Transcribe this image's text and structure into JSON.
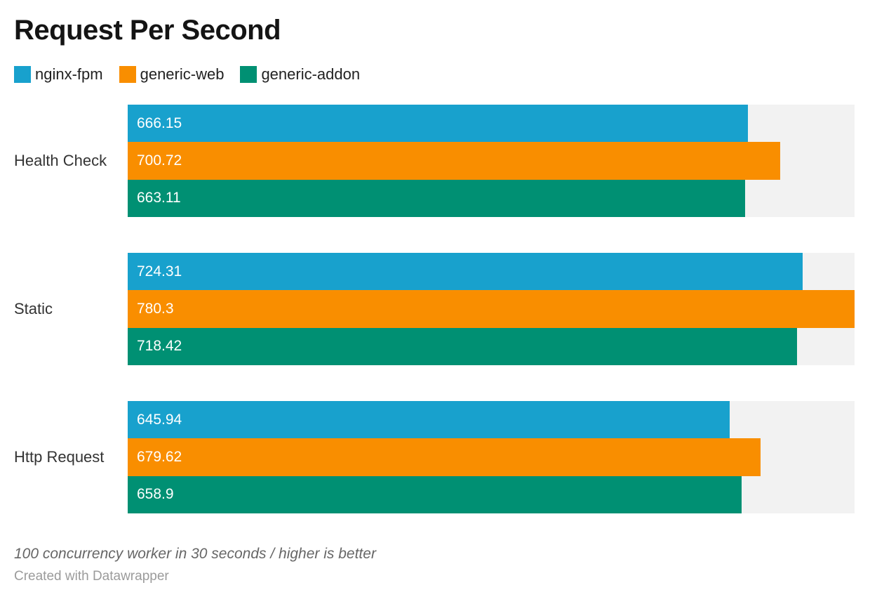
{
  "title": "Request Per Second",
  "legend": [
    {
      "label": "nginx-fpm",
      "color": "#18a1cd"
    },
    {
      "label": "generic-web",
      "color": "#f98e00"
    },
    {
      "label": "generic-addon",
      "color": "#009073"
    }
  ],
  "chart_data": {
    "type": "bar",
    "orientation": "horizontal",
    "title": "Request Per Second",
    "categories": [
      "Health Check",
      "Static",
      "Http Request"
    ],
    "series": [
      {
        "name": "nginx-fpm",
        "color": "#18a1cd",
        "values": [
          666.15,
          724.31,
          645.94
        ]
      },
      {
        "name": "generic-web",
        "color": "#f98e00",
        "values": [
          700.72,
          780.3,
          679.62
        ]
      },
      {
        "name": "generic-addon",
        "color": "#009073",
        "values": [
          663.11,
          718.42,
          658.9
        ]
      }
    ],
    "xlim": [
      0,
      780.3
    ],
    "value_labels": "inside-left",
    "track_color": "#f2f2f2",
    "grid": false,
    "legend_position": "top-left"
  },
  "footer": {
    "note": "100 concurrency worker in 30 seconds / higher is better",
    "attribution": "Created with Datawrapper"
  }
}
